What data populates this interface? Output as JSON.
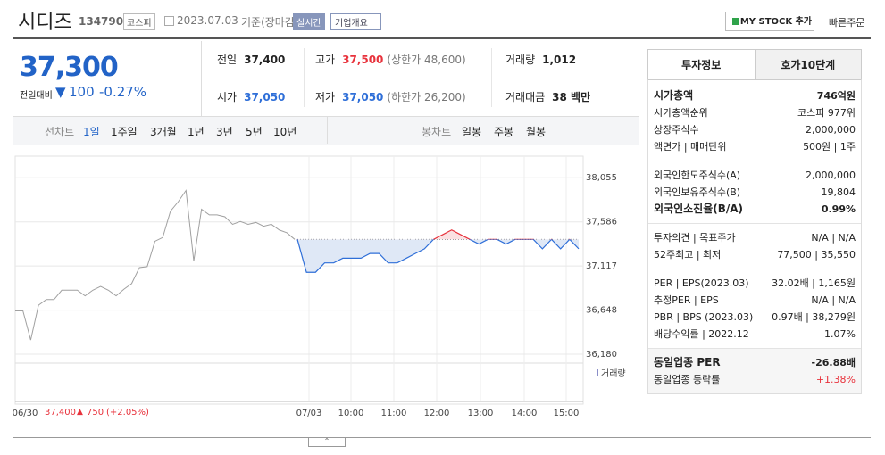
{
  "header": {
    "name": "시디즈",
    "code": "134790",
    "market": "코스피",
    "date": "2023.07.03",
    "basis": "기준(장마감)",
    "realtime": "실시간",
    "overview": "기업개요",
    "my_stock": "MY STOCK 추가",
    "quick_order": "빠른주문"
  },
  "quote": {
    "price": "37,300",
    "change_label": "전일대비",
    "change_arrow": "▼",
    "change": "100",
    "rate": "-0.27%",
    "rows": [
      [
        {
          "label": "전일",
          "value": "37,400"
        },
        {
          "label": "고가",
          "value": "37,500",
          "color": "#e8323c",
          "note": "(상한가 48,600)"
        },
        {
          "label": "거래량",
          "value": "1,012"
        }
      ],
      [
        {
          "label": "시가",
          "value": "37,050",
          "color": "#2f6fd8"
        },
        {
          "label": "저가",
          "value": "37,050",
          "color": "#2f6fd8",
          "note": "(하한가 26,200)"
        },
        {
          "label": "거래대금",
          "value": "38 백만"
        }
      ]
    ]
  },
  "tabs": {
    "line_label": "선차트",
    "periods": [
      "1일",
      "1주일",
      "3개월",
      "1년",
      "3년",
      "5년",
      "10년"
    ],
    "candle_label": "봉차트",
    "candles": [
      "일봉",
      "주봉",
      "월봉"
    ]
  },
  "chart_data": {
    "type": "line",
    "ylim": [
      36085,
      38190
    ],
    "yticks": [
      {
        "value": 38055,
        "label": "38,055"
      },
      {
        "value": 37586,
        "label": "37,586"
      },
      {
        "value": 37117,
        "label": "37,117"
      },
      {
        "value": 36648,
        "label": "36,648"
      },
      {
        "value": 36180,
        "label": "36,180"
      }
    ],
    "grid": true,
    "x_labels": [
      "06/30",
      "07/03",
      "10:00",
      "11:00",
      "12:00",
      "13:00",
      "14:00",
      "15:00"
    ],
    "volume_label": "거래량",
    "reference": 37400,
    "up_color": "#e8323c",
    "series": [
      {
        "color": "#a0a0a0",
        "values": [
          36640,
          36640,
          36330,
          36700,
          36760,
          36760,
          36860,
          36860,
          36860,
          36800,
          36860,
          36900,
          36860,
          36800,
          36870,
          36930,
          37100,
          37110,
          37380,
          37420,
          37700,
          37800,
          37920,
          37170,
          37720,
          37660,
          37660,
          37640,
          37560,
          37590,
          37560,
          37580,
          37540,
          37560,
          37500,
          37470,
          37400
        ]
      },
      {
        "color": "#2f6fd8",
        "values": [
          37400,
          37050,
          37050,
          37150,
          37150,
          37200,
          37200,
          37200,
          37250,
          37250,
          37150,
          37150,
          37200,
          37250,
          37300,
          37400,
          37450,
          37500,
          37450,
          37400,
          37350,
          37400,
          37400,
          37350,
          37400,
          37400,
          37400,
          37300,
          37400,
          37300,
          37400,
          37300
        ]
      }
    ],
    "footer": {
      "close": "37,400",
      "arrow": "▲",
      "change": "750",
      "rate": "(+2.05%)"
    }
  },
  "info": {
    "tabs": [
      "투자정보",
      "호가10단계"
    ],
    "groups": [
      [
        {
          "label": "시가총액",
          "value": "746억원",
          "bold": true
        },
        {
          "label": "시가총액순위",
          "value": "코스피 977위"
        },
        {
          "label": "상장주식수",
          "value": "2,000,000"
        },
        {
          "label": "액면가 | 매매단위",
          "value": "500원 | 1주"
        }
      ],
      [
        {
          "label": "외국인한도주식수(A)",
          "value": "2,000,000"
        },
        {
          "label": "외국인보유주식수(B)",
          "value": "19,804"
        },
        {
          "label": "외국인소진율(B/A)",
          "value": "0.99%",
          "bold": true
        }
      ],
      [
        {
          "label": "투자의견 | 목표주가",
          "value": "N/A | N/A"
        },
        {
          "label": "52주최고 | 최저",
          "value": "77,500 | 35,550"
        }
      ],
      [
        {
          "label": "PER | EPS(2023.03)",
          "value": "32.02배 | 1,165원"
        },
        {
          "label": "추정PER | EPS",
          "value": "N/A | N/A"
        },
        {
          "label": "PBR | BPS (2023.03)",
          "value": "0.97배 | 38,279원"
        },
        {
          "label": "배당수익률 | 2022.12",
          "value": "1.07%"
        }
      ],
      [
        {
          "label": "동일업종 PER",
          "value": "-26.88배",
          "bold": true
        },
        {
          "label": "동일업종 등락률",
          "value": "+1.38%",
          "color": "#e8323c"
        }
      ]
    ]
  }
}
